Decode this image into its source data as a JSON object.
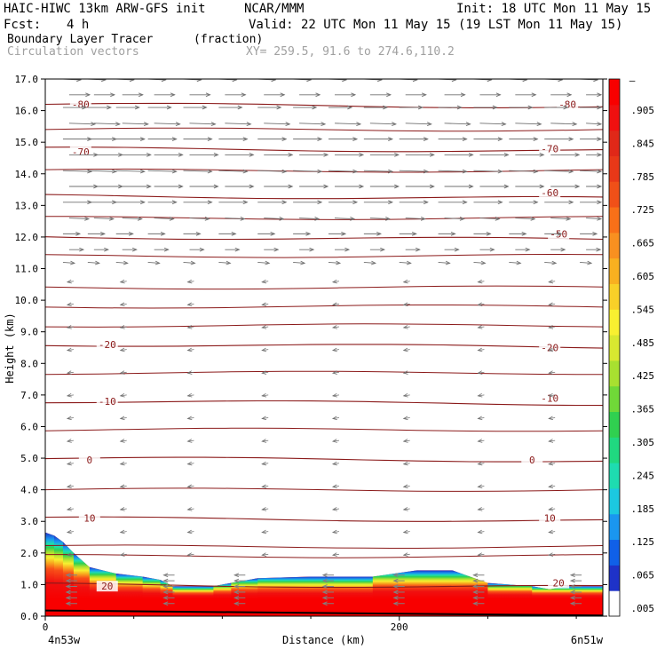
{
  "header": {
    "model": "HAIC-HIWC 13km ARW-GFS init",
    "org": "NCAR/MMM",
    "init": "Init: 18 UTC Mon 11 May 15",
    "fcst_label": "Fcst:",
    "fcst_value": "4 h",
    "valid": "Valid: 22 UTC Mon 11 May 15 (19 LST Mon 11 May 15)",
    "field": "Boundary Layer Tracer",
    "units": "(fraction)",
    "overlay": "Circulation vectors",
    "xy": "XY= 259.5, 91.6 to 274.6,110.2"
  },
  "chart_data": {
    "type": "heatmap",
    "title": "Boundary Layer Tracer",
    "xlabel": "Distance (km)",
    "ylabel": "Height (km)",
    "xlim": [
      0,
      315
    ],
    "ylim": [
      0,
      17
    ],
    "x_ticks": [
      "0",
      "200"
    ],
    "x_end_labels": [
      "4n53w",
      "6n51w"
    ],
    "y_ticks": [
      "0.0",
      "1.0",
      "2.0",
      "3.0",
      "4.0",
      "5.0",
      "6.0",
      "7.0",
      "8.0",
      "9.0",
      "10.0",
      "11.0",
      "12.0",
      "13.0",
      "14.0",
      "15.0",
      "16.0",
      "17.0"
    ],
    "colorbar": {
      "labels": [
        ".005",
        ".065",
        ".125",
        ".185",
        ".245",
        ".305",
        ".365",
        ".425",
        ".485",
        ".545",
        ".605",
        ".665",
        ".725",
        ".785",
        ".845",
        ".905"
      ],
      "top_label": "–",
      "colors": [
        "#ffffff",
        "#1e32c8",
        "#1060e8",
        "#1a96f0",
        "#1cc8e0",
        "#1edcb0",
        "#20d880",
        "#30d050",
        "#70d838",
        "#a8e030",
        "#d8e830",
        "#f8f030",
        "#f8d028",
        "#f8b020",
        "#f89020",
        "#f87018",
        "#f05018",
        "#e83818",
        "#e02818",
        "#f01010",
        "#f80000"
      ]
    },
    "tracer_top_km": [
      {
        "x": 0,
        "z": 2.65
      },
      {
        "x": 5,
        "z": 2.55
      },
      {
        "x": 10,
        "z": 2.35
      },
      {
        "x": 16,
        "z": 2.0
      },
      {
        "x": 25,
        "z": 1.55
      },
      {
        "x": 40,
        "z": 1.35
      },
      {
        "x": 55,
        "z": 1.25
      },
      {
        "x": 65,
        "z": 1.15
      },
      {
        "x": 72,
        "z": 0.95
      },
      {
        "x": 95,
        "z": 0.95
      },
      {
        "x": 105,
        "z": 1.05
      },
      {
        "x": 120,
        "z": 1.2
      },
      {
        "x": 150,
        "z": 1.25
      },
      {
        "x": 185,
        "z": 1.25
      },
      {
        "x": 210,
        "z": 1.45
      },
      {
        "x": 230,
        "z": 1.45
      },
      {
        "x": 250,
        "z": 1.05
      },
      {
        "x": 275,
        "z": 0.95
      },
      {
        "x": 285,
        "z": 0.85
      },
      {
        "x": 295,
        "z": 0.95
      },
      {
        "x": 315,
        "z": 0.95
      }
    ],
    "temperature_contours": [
      {
        "label": "-80",
        "z": 16.2
      },
      {
        "label": "-70",
        "z": 14.8
      },
      {
        "label": "-60",
        "z": 13.3
      },
      {
        "label": "-50",
        "z": 12.0
      },
      {
        "label": "-20",
        "z": 8.6
      },
      {
        "label": "-10",
        "z": 6.8
      },
      {
        "label": "0",
        "z": 5.0
      },
      {
        "label": "10",
        "z": 3.1
      },
      {
        "label": "20",
        "z": 1.0
      }
    ],
    "contour_labels": [
      {
        "text": "-80",
        "x": 20,
        "z": 16.2
      },
      {
        "text": "-80",
        "x": 295,
        "z": 16.2
      },
      {
        "text": "-70",
        "x": 20,
        "z": 14.7
      },
      {
        "text": "-70",
        "x": 285,
        "z": 14.8
      },
      {
        "text": "-60",
        "x": 285,
        "z": 13.4
      },
      {
        "text": "-50",
        "x": 290,
        "z": 12.1
      },
      {
        "text": "-20",
        "x": 35,
        "z": 8.6
      },
      {
        "text": "-20",
        "x": 285,
        "z": 8.5
      },
      {
        "text": "-10",
        "x": 35,
        "z": 6.8
      },
      {
        "text": "-10",
        "x": 285,
        "z": 6.9
      },
      {
        "text": "0",
        "x": 25,
        "z": 4.95
      },
      {
        "text": "0",
        "x": 275,
        "z": 4.95
      },
      {
        "text": "10",
        "x": 25,
        "z": 3.1
      },
      {
        "text": "10",
        "x": 285,
        "z": 3.1
      },
      {
        "text": "20",
        "x": 35,
        "z": 0.95
      },
      {
        "text": "20",
        "x": 290,
        "z": 1.05
      }
    ],
    "wind_vectors_upper_km": [
      17.0,
      16.5,
      16.1,
      15.6,
      15.1,
      14.6,
      14.1,
      13.6,
      13.1,
      12.6,
      12.1,
      11.6,
      11.2
    ],
    "grid": false
  },
  "colors": {
    "contour": "#8b1a1a",
    "vector": "#707070",
    "ground": "#000000"
  }
}
